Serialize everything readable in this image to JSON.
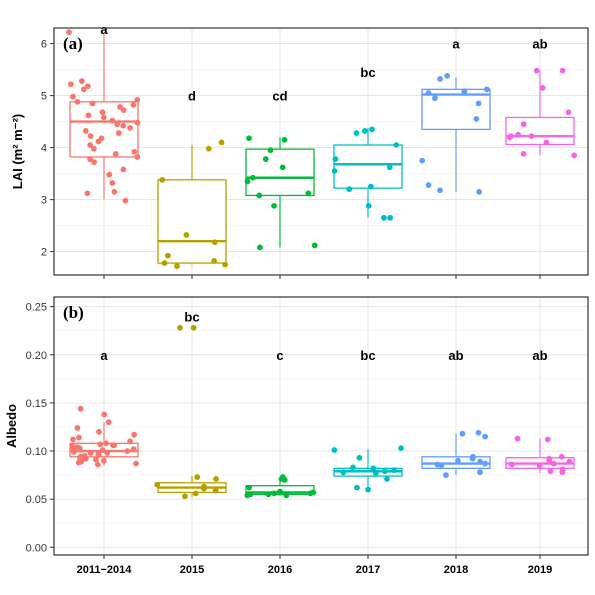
{
  "chart_data": [
    {
      "panel": "(a)",
      "type": "box",
      "ylabel": "LAI (m² m⁻²)",
      "ylim": [
        1.55,
        6.3
      ],
      "yticks": [
        2,
        3,
        4,
        5,
        6
      ],
      "categories": [
        "2011−2014",
        "2015",
        "2016",
        "2017",
        "2018",
        "2019"
      ],
      "colors": [
        "#F8766D",
        "#B79F00",
        "#00BA38",
        "#00BFC4",
        "#619CFF",
        "#F564E3"
      ],
      "boxes": [
        {
          "q1": 3.82,
          "median": 4.5,
          "q3": 4.88,
          "whisker_low": 3.0,
          "whisker_high": 6.2
        },
        {
          "q1": 1.78,
          "median": 2.2,
          "q3": 3.38,
          "whisker_low": 1.75,
          "whisker_high": 4.05
        },
        {
          "q1": 3.08,
          "median": 3.42,
          "q3": 3.97,
          "whisker_low": 2.08,
          "whisker_high": 4.2
        },
        {
          "q1": 3.22,
          "median": 3.68,
          "q3": 4.05,
          "whisker_low": 2.65,
          "whisker_high": 4.38
        },
        {
          "q1": 4.35,
          "median": 5.02,
          "q3": 5.12,
          "whisker_low": 3.15,
          "whisker_high": 5.35
        },
        {
          "q1": 4.06,
          "median": 4.22,
          "q3": 4.58,
          "whisker_low": 3.85,
          "whisker_high": 5.48
        }
      ],
      "points": [
        [
          6.22,
          5.28,
          5.22,
          5.18,
          5.12,
          4.98,
          4.92,
          4.88,
          4.85,
          4.82,
          4.78,
          4.72,
          4.68,
          4.62,
          4.58,
          4.52,
          4.48,
          4.45,
          4.42,
          4.38,
          4.32,
          4.28,
          4.22,
          4.18,
          4.12,
          4.05,
          3.98,
          3.92,
          3.88,
          3.82,
          3.78,
          3.72,
          3.58,
          3.48,
          3.32,
          3.15,
          3.12,
          2.98
        ],
        [
          4.1,
          3.98,
          3.38,
          2.32,
          2.18,
          1.92,
          1.82,
          1.78,
          1.75,
          1.72
        ],
        [
          4.18,
          4.15,
          3.95,
          3.78,
          3.62,
          3.42,
          3.35,
          3.12,
          3.08,
          2.88,
          2.12,
          2.08
        ],
        [
          4.35,
          4.32,
          4.28,
          4.05,
          3.78,
          3.62,
          3.55,
          3.25,
          3.2,
          2.88,
          2.65,
          2.65
        ],
        [
          5.38,
          5.32,
          5.12,
          5.08,
          5.05,
          4.95,
          4.85,
          4.55,
          3.75,
          3.28,
          3.18,
          3.15
        ],
        [
          5.48,
          5.48,
          5.15,
          4.68,
          4.45,
          4.25,
          4.22,
          4.22,
          4.2,
          4.1,
          3.88,
          3.85
        ]
      ],
      "letters": [
        "a",
        "d",
        "cd",
        "bc",
        "a",
        "ab"
      ],
      "letter_y": [
        6.28,
        5.0,
        5.0,
        5.45,
        6.0,
        6.0
      ]
    },
    {
      "panel": "(b)",
      "type": "box",
      "ylabel": "Albedo",
      "xlabel": "",
      "ylim": [
        -0.008,
        0.26
      ],
      "yticks": [
        0.0,
        0.05,
        0.1,
        0.15,
        0.2,
        0.25
      ],
      "ytick_labels": [
        "0.00",
        "0.05",
        "0.10",
        "0.15",
        "0.20",
        "0.25"
      ],
      "categories": [
        "2011−2014",
        "2015",
        "2016",
        "2017",
        "2018",
        "2019"
      ],
      "colors": [
        "#F8766D",
        "#B79F00",
        "#00BA38",
        "#00BFC4",
        "#619CFF",
        "#F564E3"
      ],
      "boxes": [
        {
          "q1": 0.094,
          "median": 0.1,
          "q3": 0.108,
          "whisker_low": 0.085,
          "whisker_high": 0.13
        },
        {
          "q1": 0.057,
          "median": 0.062,
          "q3": 0.067,
          "whisker_low": 0.052,
          "whisker_high": 0.074
        },
        {
          "q1": 0.055,
          "median": 0.057,
          "q3": 0.064,
          "whisker_low": 0.053,
          "whisker_high": 0.073
        },
        {
          "q1": 0.074,
          "median": 0.079,
          "q3": 0.082,
          "whisker_low": 0.06,
          "whisker_high": 0.102
        },
        {
          "q1": 0.082,
          "median": 0.087,
          "q3": 0.094,
          "whisker_low": 0.075,
          "whisker_high": 0.118
        },
        {
          "q1": 0.082,
          "median": 0.087,
          "q3": 0.093,
          "whisker_low": 0.077,
          "whisker_high": 0.113
        }
      ],
      "points": [
        [
          0.144,
          0.138,
          0.13,
          0.124,
          0.12,
          0.117,
          0.114,
          0.112,
          0.11,
          0.108,
          0.107,
          0.106,
          0.105,
          0.104,
          0.103,
          0.102,
          0.101,
          0.1,
          0.099,
          0.098,
          0.097,
          0.096,
          0.095,
          0.094,
          0.093,
          0.092,
          0.091,
          0.09,
          0.089,
          0.088,
          0.087,
          0.086,
          0.094,
          0.098,
          0.102,
          0.106
        ],
        [
          0.228,
          0.228,
          0.073,
          0.071,
          0.065,
          0.063,
          0.061,
          0.059,
          0.056,
          0.053
        ],
        [
          0.073,
          0.071,
          0.07,
          0.062,
          0.058,
          0.057,
          0.056,
          0.056,
          0.055,
          0.055,
          0.054,
          0.054
        ],
        [
          0.103,
          0.101,
          0.093,
          0.083,
          0.082,
          0.08,
          0.079,
          0.078,
          0.077,
          0.071,
          0.062,
          0.06
        ],
        [
          0.119,
          0.118,
          0.115,
          0.094,
          0.092,
          0.09,
          0.089,
          0.087,
          0.086,
          0.085,
          0.078,
          0.075
        ],
        [
          0.113,
          0.112,
          0.094,
          0.092,
          0.09,
          0.089,
          0.087,
          0.086,
          0.085,
          0.081,
          0.079,
          0.078
        ]
      ],
      "letters": [
        "a",
        "bc",
        "c",
        "bc",
        "ab",
        "ab"
      ],
      "letter_y": [
        0.2,
        0.24,
        0.2,
        0.2,
        0.2,
        0.2
      ]
    }
  ]
}
